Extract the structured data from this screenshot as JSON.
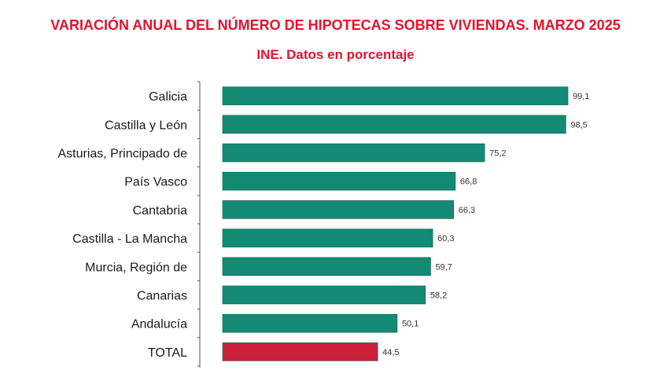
{
  "chart_data": {
    "type": "bar",
    "orientation": "horizontal",
    "title": "VARIACIÓN ANUAL DEL NÚMERO DE HIPOTECAS SOBRE VIVIENDAS. MARZO 2025",
    "subtitle": "INE. Datos en porcentaje",
    "categories": [
      "Galicia",
      "Castilla y León",
      "Asturias, Principado de",
      "País Vasco",
      "Cantabria",
      "Castilla - La Mancha",
      "Murcia, Región de",
      "Canarias",
      "Andalucía",
      "TOTAL"
    ],
    "values": [
      99.1,
      98.5,
      75.2,
      66.8,
      66.3,
      60.3,
      59.7,
      58.2,
      50.1,
      44.5
    ],
    "value_labels": [
      "99,1",
      "98,5",
      "75,2",
      "66,8",
      "66,3",
      "60,3",
      "59,7",
      "58,2",
      "50,1",
      "44,5"
    ],
    "xlim": [
      0,
      100
    ],
    "grid": false,
    "legend": "none",
    "colors": {
      "bar": "#138a74",
      "total_bar": "#cc1f3a",
      "title": "#e8102e",
      "axis": "#555555"
    }
  }
}
